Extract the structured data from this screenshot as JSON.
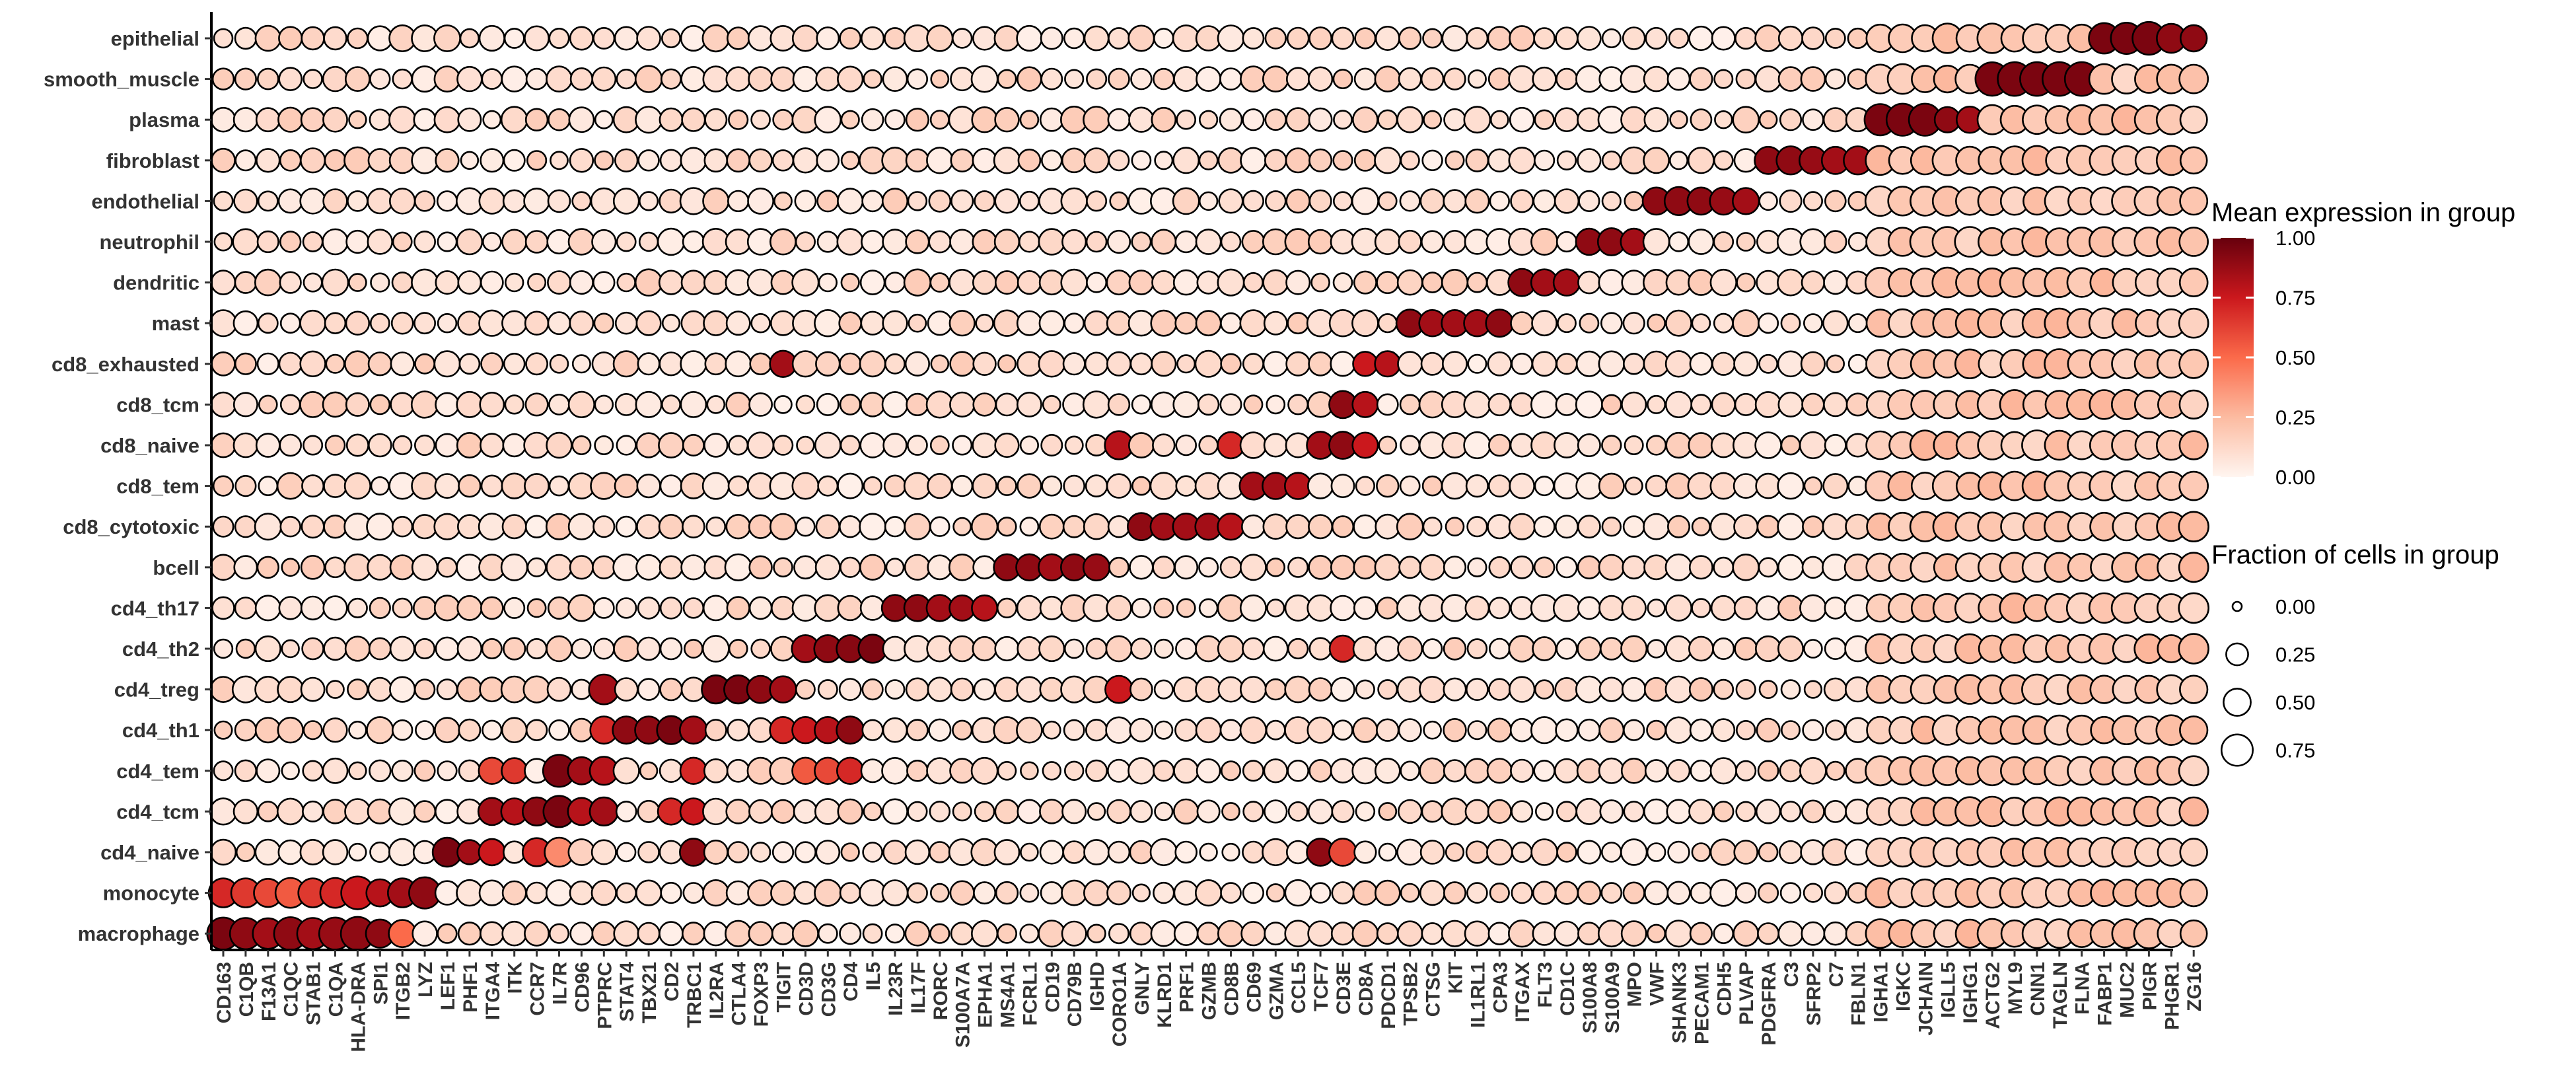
{
  "chart_data": {
    "type": "dotplot",
    "title": "",
    "xlabel": "",
    "ylabel": "",
    "genes": [
      "CD163",
      "C1QB",
      "F13A1",
      "C1QC",
      "STAB1",
      "C1QA",
      "HLA-DRA",
      "SPI1",
      "ITGB2",
      "LYZ",
      "LEF1",
      "PHF1",
      "ITGA4",
      "ITK",
      "CCR7",
      "IL7R",
      "CD96",
      "PTPRC",
      "STAT4",
      "TBX21",
      "CD2",
      "TRBC1",
      "IL2RA",
      "CTLA4",
      "FOXP3",
      "TIGIT",
      "CD3D",
      "CD3G",
      "CD4",
      "IL5",
      "IL23R",
      "IL17F",
      "RORC",
      "S100A7A",
      "EPHA1",
      "MS4A1",
      "FCRL1",
      "CD19",
      "CD79B",
      "IGHD",
      "CORO1A",
      "GNLY",
      "KLRD1",
      "PRF1",
      "GZMB",
      "CD8B",
      "CD69",
      "GZMA",
      "CCL5",
      "TCF7",
      "CD3E",
      "CD8A",
      "PDCD1",
      "TPSB2",
      "CTSG",
      "KIT",
      "IL1RL1",
      "CPA3",
      "ITGAX",
      "FLT3",
      "CD1C",
      "S100A8",
      "S100A9",
      "MPO",
      "VWF",
      "SHANK3",
      "PECAM1",
      "CDH5",
      "PLVAP",
      "PDGFRA",
      "C3",
      "SFRP2",
      "C7",
      "FBLN1",
      "IGHA1",
      "IGKC",
      "JCHAIN",
      "IGLL5",
      "IGHG1",
      "ACTG2",
      "MYL9",
      "CNN1",
      "TAGLN",
      "FLNA",
      "FABP1",
      "MUC2",
      "PIGR",
      "PHGR1",
      "ZG16"
    ],
    "cell_types": [
      "epithelial",
      "smooth_muscle",
      "plasma",
      "fibroblast",
      "endothelial",
      "neutrophil",
      "dendritic",
      "mast",
      "cd8_exhausted",
      "cd8_tcm",
      "cd8_naive",
      "cd8_tem",
      "cd8_cytotoxic",
      "bcell",
      "cd4_th17",
      "cd4_th2",
      "cd4_treg",
      "cd4_th1",
      "cd4_tem",
      "cd4_tcm",
      "cd4_naive",
      "monocyte",
      "macrophage"
    ],
    "marker_blocks": {
      "macrophage": {
        "genes": [
          "CD163",
          "C1QB",
          "F13A1",
          "C1QC",
          "STAB1",
          "C1QA",
          "HLA-DRA",
          "SPI1",
          "ITGB2"
        ],
        "mean": [
          0.95,
          0.9,
          0.85,
          0.9,
          0.85,
          0.88,
          0.9,
          0.9,
          0.5
        ],
        "fraction": [
          0.8,
          0.75,
          0.7,
          0.85,
          0.75,
          0.8,
          0.9,
          0.55,
          0.5
        ]
      },
      "monocyte": {
        "genes": [
          "CD163",
          "C1QB",
          "F13A1",
          "C1QC",
          "STAB1",
          "C1QA",
          "HLA-DRA",
          "SPI1",
          "ITGB2",
          "LYZ"
        ],
        "mean": [
          0.7,
          0.65,
          0.6,
          0.55,
          0.65,
          0.7,
          0.75,
          0.8,
          0.85,
          0.9
        ],
        "fraction": [
          0.6,
          0.6,
          0.55,
          0.65,
          0.6,
          0.65,
          0.85,
          0.5,
          0.6,
          0.75
        ]
      },
      "cd4_naive": {
        "genes": [
          "LEF1",
          "PHF1",
          "ITGA4",
          "CCR7",
          "IL7R",
          "TRBC1",
          "TCF7",
          "CD3E"
        ],
        "mean": [
          0.95,
          0.85,
          0.75,
          0.7,
          0.4,
          0.9,
          0.9,
          0.6
        ],
        "fraction": [
          0.6,
          0.35,
          0.45,
          0.55,
          0.6,
          0.5,
          0.5,
          0.5
        ]
      },
      "cd4_tcm": {
        "genes": [
          "ITGA4",
          "ITK",
          "CCR7",
          "IL7R",
          "CD96",
          "PTPRC",
          "CD2",
          "TRBC1"
        ],
        "mean": [
          0.85,
          0.8,
          0.9,
          0.95,
          0.8,
          0.85,
          0.7,
          0.75
        ],
        "fraction": [
          0.5,
          0.45,
          0.55,
          0.75,
          0.5,
          0.55,
          0.45,
          0.45
        ]
      },
      "cd4_tem": {
        "genes": [
          "ITGA4",
          "ITK",
          "IL7R",
          "CD96",
          "PTPRC",
          "TRBC1",
          "CD3D",
          "CD3G",
          "CD4"
        ],
        "mean": [
          0.6,
          0.65,
          0.95,
          0.85,
          0.8,
          0.7,
          0.55,
          0.6,
          0.7
        ],
        "fraction": [
          0.45,
          0.4,
          0.8,
          0.5,
          0.55,
          0.45,
          0.45,
          0.45,
          0.45
        ]
      },
      "cd4_th1": {
        "genes": [
          "PTPRC",
          "STAT4",
          "TBX21",
          "CD2",
          "TRBC1",
          "TIGIT",
          "CD3D",
          "CD3G",
          "CD4"
        ],
        "mean": [
          0.7,
          0.9,
          0.9,
          0.95,
          0.85,
          0.7,
          0.75,
          0.8,
          0.9
        ],
        "fraction": [
          0.5,
          0.5,
          0.5,
          0.55,
          0.5,
          0.45,
          0.45,
          0.45,
          0.5
        ]
      },
      "cd4_treg": {
        "genes": [
          "PTPRC",
          "IL2RA",
          "CTLA4",
          "FOXP3",
          "TIGIT",
          "CORO1A"
        ],
        "mean": [
          0.85,
          0.95,
          0.95,
          0.9,
          0.85,
          0.75
        ],
        "fraction": [
          0.65,
          0.55,
          0.55,
          0.5,
          0.45,
          0.5
        ]
      },
      "cd4_th2": {
        "genes": [
          "CD3D",
          "CD3G",
          "CD4",
          "IL5",
          "CD3E"
        ],
        "mean": [
          0.85,
          0.9,
          0.92,
          0.95,
          0.7
        ],
        "fraction": [
          0.5,
          0.5,
          0.5,
          0.55,
          0.45
        ]
      },
      "cd4_th17": {
        "genes": [
          "IL23R",
          "IL17F",
          "RORC",
          "S100A7A",
          "EPHA1"
        ],
        "mean": [
          0.9,
          0.9,
          0.85,
          0.85,
          0.8
        ],
        "fraction": [
          0.45,
          0.45,
          0.45,
          0.4,
          0.4
        ]
      },
      "bcell": {
        "genes": [
          "MS4A1",
          "FCRL1",
          "CD19",
          "CD79B",
          "IGHD"
        ],
        "mean": [
          0.9,
          0.9,
          0.85,
          0.9,
          0.88
        ],
        "fraction": [
          0.45,
          0.45,
          0.45,
          0.45,
          0.45
        ]
      },
      "cd8_cytotoxic": {
        "genes": [
          "GNLY",
          "KLRD1",
          "PRF1",
          "GZMB",
          "CD8B"
        ],
        "mean": [
          0.9,
          0.85,
          0.85,
          0.85,
          0.8
        ],
        "fraction": [
          0.5,
          0.45,
          0.45,
          0.45,
          0.45
        ]
      },
      "cd8_tem": {
        "genes": [
          "CD69",
          "GZMA",
          "CCL5"
        ],
        "mean": [
          0.85,
          0.85,
          0.8
        ],
        "fraction": [
          0.5,
          0.45,
          0.45
        ]
      },
      "cd8_naive": {
        "genes": [
          "CORO1A",
          "CD8B",
          "TCF7",
          "CD3E",
          "CD8A"
        ],
        "mean": [
          0.8,
          0.7,
          0.85,
          0.9,
          0.75
        ],
        "fraction": [
          0.55,
          0.45,
          0.5,
          0.5,
          0.4
        ]
      },
      "cd8_tcm": {
        "genes": [
          "CD3E",
          "CD8A"
        ],
        "mean": [
          0.9,
          0.8
        ],
        "fraction": [
          0.5,
          0.4
        ]
      },
      "cd8_exhausted": {
        "genes": [
          "TIGIT",
          "PDCD1",
          "CD8A"
        ],
        "mean": [
          0.85,
          0.8,
          0.75
        ],
        "fraction": [
          0.45,
          0.4,
          0.35
        ]
      },
      "mast": {
        "genes": [
          "TPSB2",
          "CTSG",
          "KIT",
          "IL1RL1",
          "CPA3"
        ],
        "mean": [
          0.9,
          0.85,
          0.85,
          0.85,
          0.9
        ],
        "fraction": [
          0.5,
          0.45,
          0.45,
          0.45,
          0.5
        ]
      },
      "dendritic": {
        "genes": [
          "ITGAX",
          "FLT3",
          "CD1C"
        ],
        "mean": [
          0.9,
          0.85,
          0.85
        ],
        "fraction": [
          0.5,
          0.45,
          0.45
        ]
      },
      "neutrophil": {
        "genes": [
          "S100A8",
          "S100A9",
          "MPO"
        ],
        "mean": [
          0.9,
          0.9,
          0.85
        ],
        "fraction": [
          0.45,
          0.5,
          0.45
        ]
      },
      "endothelial": {
        "genes": [
          "VWF",
          "SHANK3",
          "PECAM1",
          "CDH5",
          "PLVAP"
        ],
        "mean": [
          0.9,
          0.9,
          0.9,
          0.88,
          0.85
        ],
        "fraction": [
          0.5,
          0.55,
          0.5,
          0.5,
          0.45
        ]
      },
      "fibroblast": {
        "genes": [
          "PDGFRA",
          "C3",
          "SFRP2",
          "C7",
          "FBLN1"
        ],
        "mean": [
          0.9,
          0.9,
          0.88,
          0.85,
          0.85
        ],
        "fraction": [
          0.5,
          0.55,
          0.5,
          0.5,
          0.55
        ]
      },
      "plasma": {
        "genes": [
          "IGHA1",
          "IGKC",
          "JCHAIN",
          "IGLL5",
          "IGHG1"
        ],
        "mean": [
          0.95,
          0.95,
          0.95,
          0.9,
          0.85
        ],
        "fraction": [
          0.75,
          0.8,
          0.8,
          0.4,
          0.45
        ]
      },
      "smooth_muscle": {
        "genes": [
          "ACTG2",
          "MYL9",
          "CNN1",
          "TAGLN",
          "FLNA"
        ],
        "mean": [
          0.95,
          0.95,
          0.95,
          0.95,
          0.95
        ],
        "fraction": [
          0.9,
          0.92,
          0.92,
          0.92,
          0.92
        ]
      },
      "epithelial": {
        "genes": [
          "FABP1",
          "MUC2",
          "PIGR",
          "PHGR1",
          "ZG16"
        ],
        "mean": [
          0.95,
          0.95,
          0.95,
          0.9,
          0.9
        ],
        "fraction": [
          0.7,
          0.75,
          0.85,
          0.6,
          0.45
        ]
      }
    },
    "background": {
      "mean": 0.1,
      "fraction": 0.3
    },
    "color_scale": {
      "low": "#FFF5F0",
      "mid": "#EF3B2C",
      "high": "#67000D",
      "range": [
        0,
        1
      ]
    },
    "legend": {
      "color": {
        "title": "Mean expression in group",
        "ticks": [
          "1.00",
          "0.75",
          "0.50",
          "0.25",
          "0.00"
        ]
      },
      "size": {
        "title": "Fraction of cells in group",
        "ticks": [
          "0.00",
          "0.25",
          "0.50",
          "0.75"
        ],
        "values": [
          0,
          0.25,
          0.5,
          0.75
        ]
      }
    },
    "legend_position": "right"
  }
}
